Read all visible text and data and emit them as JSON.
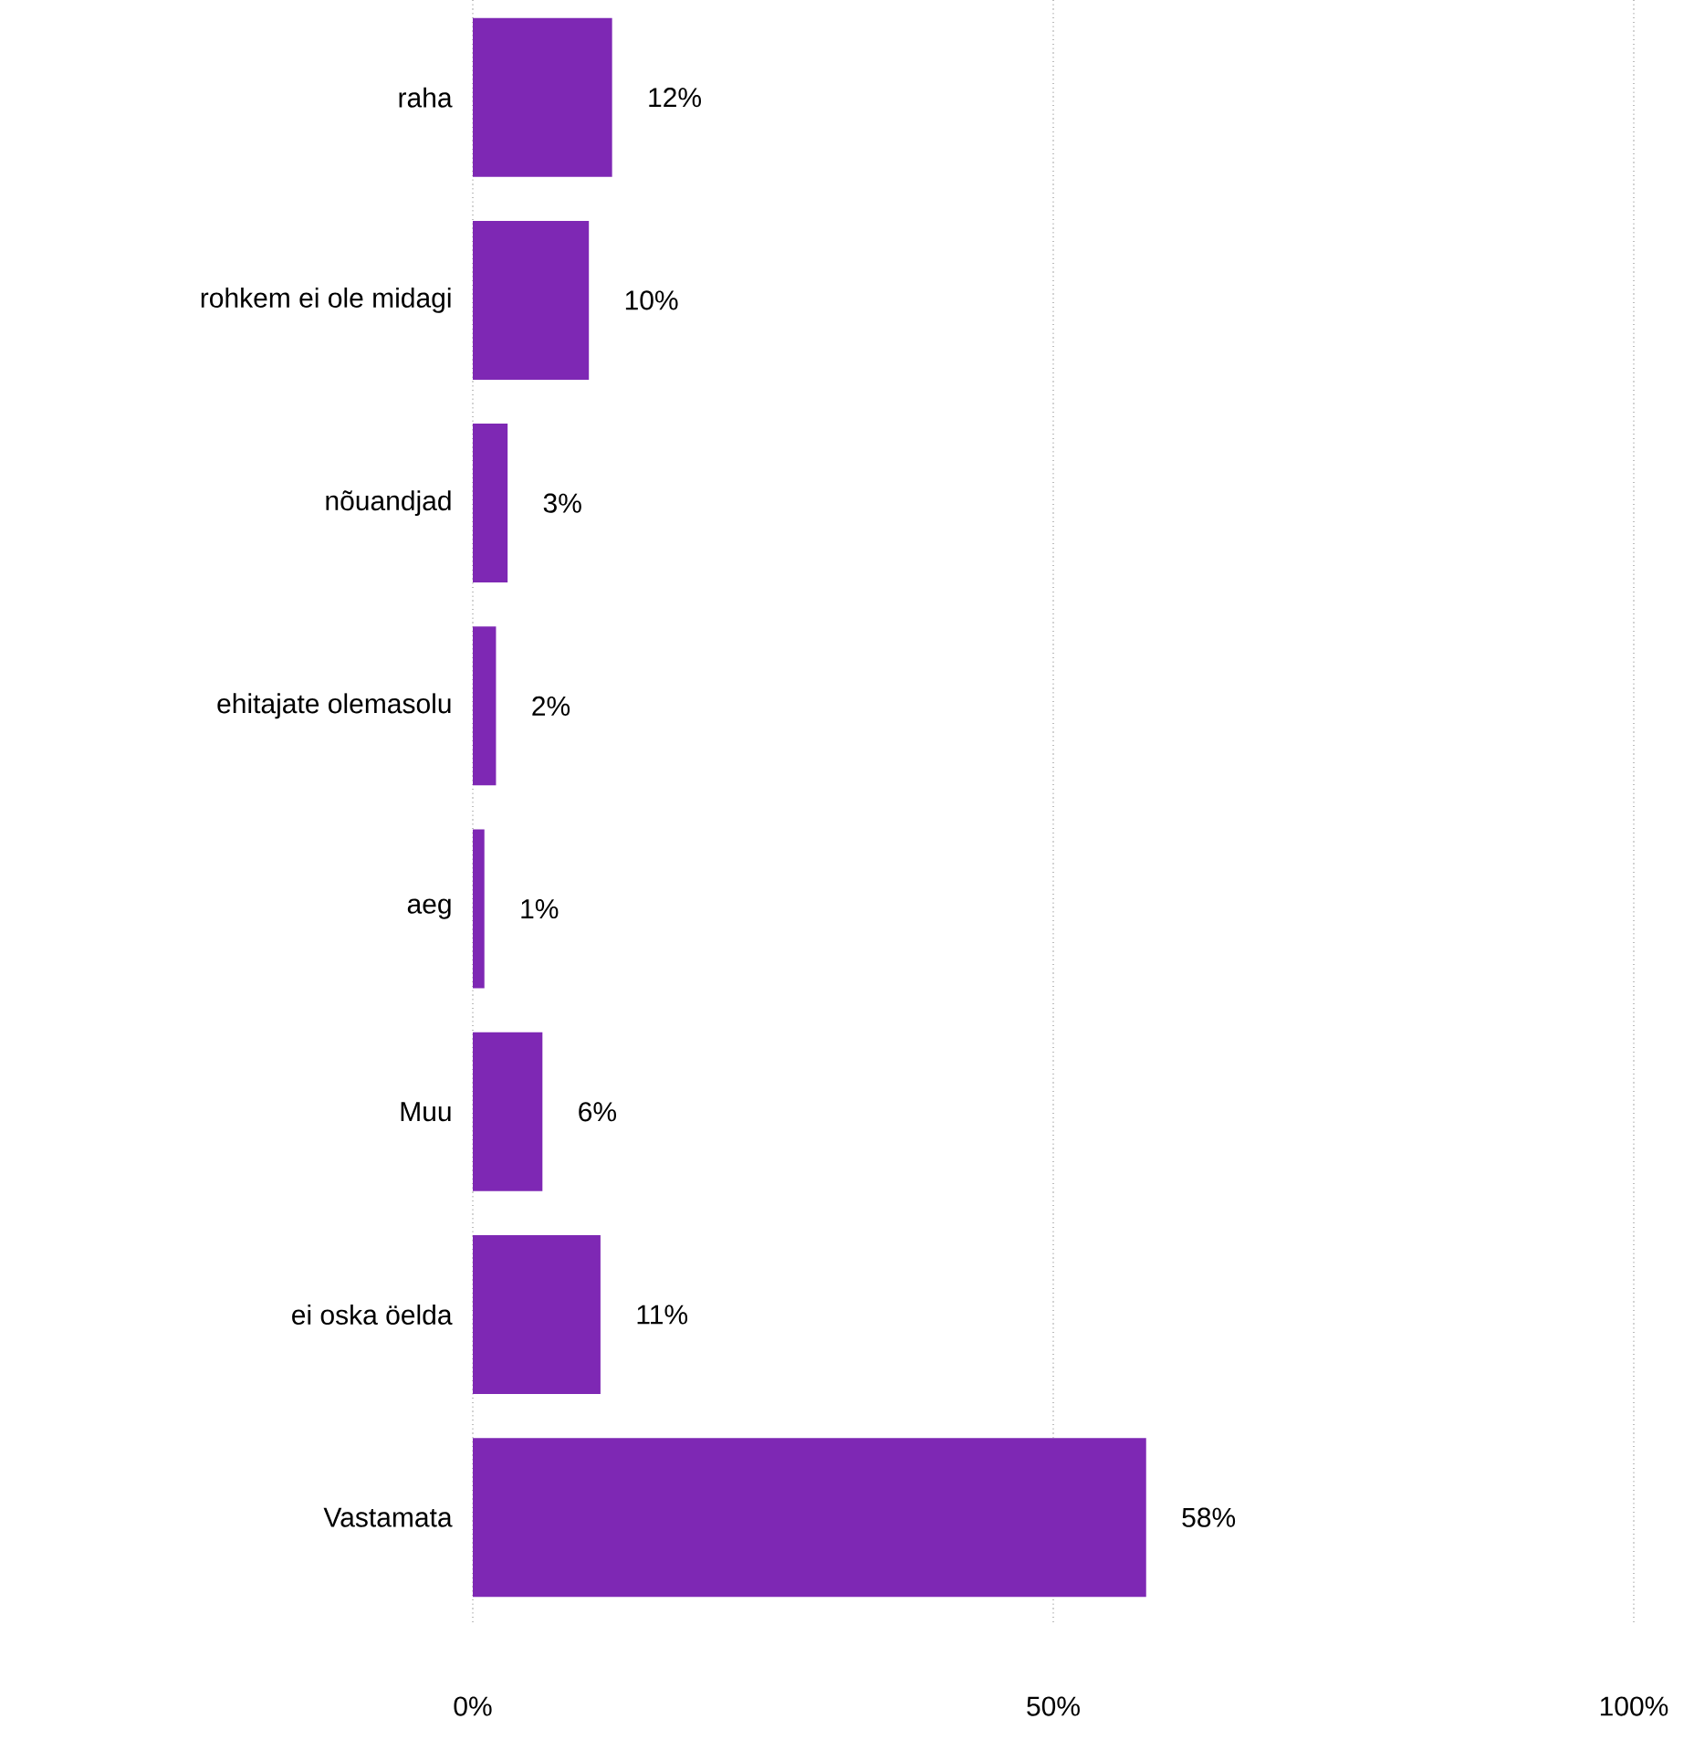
{
  "chart_data": {
    "type": "bar",
    "orientation": "horizontal",
    "categories": [
      "raha",
      "rohkem ei ole midagi",
      "nõuandjad",
      "ehitajate olemasolu",
      "aeg",
      "Muu",
      "ei oska öelda",
      "Vastamata"
    ],
    "values": [
      12,
      10,
      3,
      2,
      1,
      6,
      11,
      58
    ],
    "value_labels": [
      "12%",
      "10%",
      "3%",
      "2%",
      "1%",
      "6%",
      "11%",
      "58%"
    ],
    "color": "#7e28b4",
    "xlim": [
      0,
      100
    ],
    "xticks": [
      {
        "value": 0,
        "label": "0%"
      },
      {
        "value": 50,
        "label": "50%"
      },
      {
        "value": 100,
        "label": "100%"
      }
    ],
    "grid": "x"
  }
}
